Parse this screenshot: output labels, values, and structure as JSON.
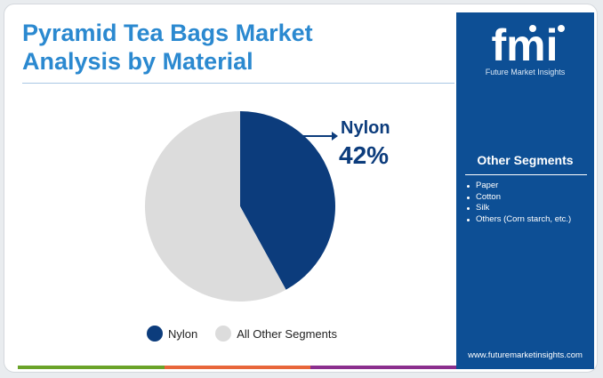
{
  "title_lines": [
    "Pyramid Tea Bags Market",
    "Analysis by Material"
  ],
  "chart_data": {
    "type": "pie",
    "title": "Pyramid Tea Bags Market Analysis by Material",
    "categories": [
      "Nylon",
      "All Other Segments"
    ],
    "values": [
      42,
      58
    ],
    "unit": "%",
    "colors": [
      "#0c3c7c",
      "#dcdcdc"
    ],
    "legend": "bottom",
    "callout": {
      "label": "Nylon",
      "value": "42%"
    }
  },
  "brand": {
    "logo_text": "fmi",
    "logo_subtitle": "Future Market Insights",
    "url": "www.futuremarketinsights.com",
    "sidebar_color": "#0d4f95"
  },
  "other_segments": {
    "heading": "Other Segments",
    "items": [
      "Paper",
      "Cotton",
      "Silk",
      "Others (Corn starch, etc.)"
    ]
  },
  "bottom_bar_colors": [
    "#6aa329",
    "#e8663a",
    "#8b2f8e"
  ]
}
